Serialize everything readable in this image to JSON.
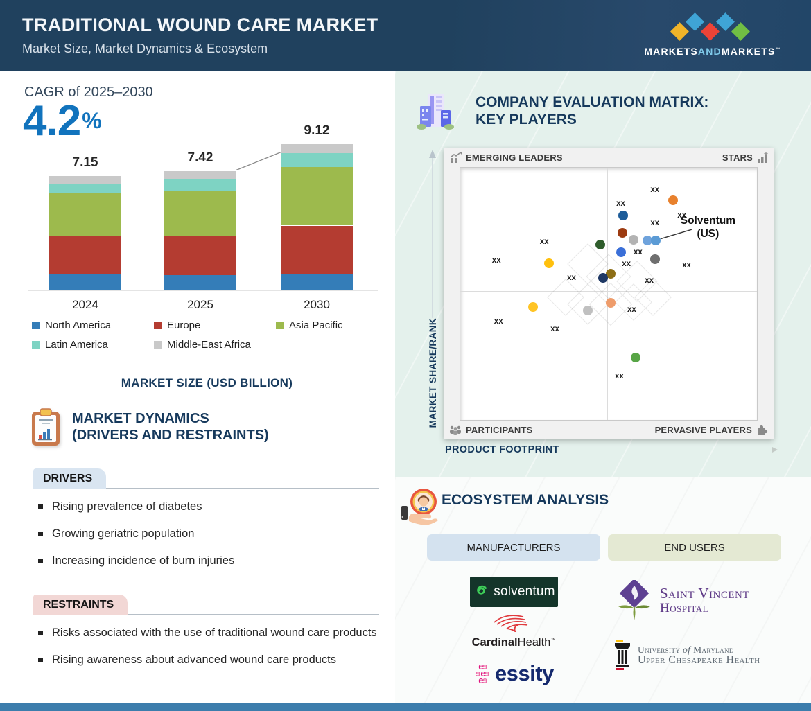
{
  "colors": {
    "header_bg": "#20415E",
    "accent_blue": "#1173BD",
    "navy_text": "#16395C",
    "panel_mint": "#E4F1EC",
    "footer_blue": "#3C7DAC",
    "driver_tab_bg": "#D9E5F1",
    "restraint_tab_bg": "#F2D7D5"
  },
  "header": {
    "title": "TRADITIONAL WOUND CARE MARKET",
    "subtitle": "Market Size, Market Dynamics & Ecosystem",
    "logo": {
      "part1": "MARKETS",
      "part2": "AND",
      "part3": "MARKETS",
      "tm": "™"
    }
  },
  "market_size": {
    "cagr_label": "CAGR of 2025–2030",
    "cagr_value": "4.2",
    "cagr_unit": "%",
    "caption": "MARKET SIZE (USD BILLION)"
  },
  "chart_data": [
    {
      "type": "bar",
      "stacked": true,
      "title": "MARKET SIZE (USD BILLION)",
      "cagr_label": "CAGR of 2025–2030",
      "cagr_value_pct": 4.2,
      "categories": [
        "2024",
        "2025",
        "2030"
      ],
      "totals": [
        7.15,
        7.42,
        9.12
      ],
      "series": [
        {
          "name": "North America",
          "color": "#347DB8",
          "values": [
            0.94,
            0.91,
            1.01
          ]
        },
        {
          "name": "Europe",
          "color": "#B43C31",
          "values": [
            2.43,
            2.49,
            3.01
          ]
        },
        {
          "name": "Asia Pacific",
          "color": "#9DBA4D",
          "values": [
            2.69,
            2.82,
            3.68
          ]
        },
        {
          "name": "Latin America",
          "color": "#7ED3C3",
          "values": [
            0.61,
            0.69,
            0.87
          ]
        },
        {
          "name": "Middle-East Africa",
          "color": "#C9C9C9",
          "values": [
            0.48,
            0.51,
            0.55
          ]
        }
      ],
      "ylabel": "Market size (USD Billion)",
      "legend_position": "below",
      "grid": false
    },
    {
      "type": "scatter",
      "title": "COMPANY EVALUATION MATRIX: KEY PLAYERS",
      "xlabel": "PRODUCT FOOTPRINT",
      "ylabel": "MARKET SHARE/RANK",
      "xlim": [
        0,
        100
      ],
      "ylim": [
        0,
        100
      ],
      "quadrant_divider_x": 49.5,
      "quadrant_divider_y": 49,
      "points": [
        {
          "x": 71.7,
          "y": 87.1,
          "color": "#E8812D",
          "name": "xx"
        },
        {
          "x": 54.8,
          "y": 81.1,
          "color": "#1D5C99",
          "name": "xx"
        },
        {
          "x": 54.6,
          "y": 74.2,
          "color": "#9C3A10",
          "name": "xx"
        },
        {
          "x": 58.3,
          "y": 71.5,
          "color": "#B3B3B3",
          "name": "xx"
        },
        {
          "x": 63.0,
          "y": 71.2,
          "color": "#6FA3DC",
          "name": "xx"
        },
        {
          "x": 66.0,
          "y": 71.2,
          "color": "#5B9BD5",
          "name": "Solventum (US)",
          "annotated": true
        },
        {
          "x": 47.1,
          "y": 69.6,
          "color": "#2F5D2C",
          "name": "xx"
        },
        {
          "x": 54.3,
          "y": 66.6,
          "color": "#3A6FD8",
          "name": "xx"
        },
        {
          "x": 65.6,
          "y": 63.8,
          "color": "#6F6F6F",
          "name": "xx"
        },
        {
          "x": 30.0,
          "y": 62.2,
          "color": "#FFC00D",
          "name": "xx"
        },
        {
          "x": 50.6,
          "y": 58.1,
          "color": "#8C6D15",
          "name": "xx"
        },
        {
          "x": 48.2,
          "y": 56.4,
          "color": "#1F3864",
          "name": "xx"
        },
        {
          "x": 50.6,
          "y": 46.3,
          "color": "#EE9C6B",
          "name": "xx"
        },
        {
          "x": 24.6,
          "y": 44.7,
          "color": "#FFC425",
          "name": "xx"
        },
        {
          "x": 43.1,
          "y": 43.3,
          "color": "#C0C0C0",
          "name": "xx"
        },
        {
          "x": 59.0,
          "y": 24.7,
          "color": "#58A546",
          "name": "xx"
        }
      ],
      "point_labels": [
        {
          "text": "xx",
          "x": 65.6,
          "y": 91.2
        },
        {
          "text": "xx",
          "x": 54.1,
          "y": 85.8
        },
        {
          "text": "xx",
          "x": 74.7,
          "y": 81.1
        },
        {
          "text": "xx",
          "x": 65.6,
          "y": 78.1
        },
        {
          "text": "xx",
          "x": 28.3,
          "y": 70.7
        },
        {
          "text": "xx",
          "x": 12.2,
          "y": 63.3
        },
        {
          "text": "xx",
          "x": 59.9,
          "y": 66.6
        },
        {
          "text": "xx",
          "x": 56.0,
          "y": 61.9
        },
        {
          "text": "xx",
          "x": 37.5,
          "y": 56.2
        },
        {
          "text": "xx",
          "x": 63.7,
          "y": 55.1
        },
        {
          "text": "xx",
          "x": 76.3,
          "y": 61.4
        },
        {
          "text": "xx",
          "x": 57.8,
          "y": 43.8
        },
        {
          "text": "xx",
          "x": 12.9,
          "y": 38.9
        },
        {
          "text": "xx",
          "x": 31.9,
          "y": 35.9
        },
        {
          "text": "xx",
          "x": 53.6,
          "y": 17.3
        }
      ]
    }
  ],
  "dynamics": {
    "title_line1": "MARKET DYNAMICS",
    "title_line2": "(DRIVERS AND RESTRAINTS)",
    "drivers": {
      "label": "DRIVERS",
      "items": [
        "Rising prevalence of diabetes",
        "Growing geriatric population",
        "Increasing incidence of burn injuries"
      ]
    },
    "restraints": {
      "label": "RESTRAINTS",
      "items": [
        "Risks associated with the use of traditional wound care products",
        "Rising awareness about advanced wound care products"
      ]
    }
  },
  "matrix": {
    "title_line1": "COMPANY EVALUATION MATRIX:",
    "title_line2": "KEY PLAYERS",
    "quadrants": {
      "top_left": "EMERGING LEADERS",
      "top_right": "STARS",
      "bottom_left": "PARTICIPANTS",
      "bottom_right": "PERVASIVE PLAYERS"
    },
    "x_axis": "PRODUCT FOOTPRINT",
    "y_axis": "MARKET SHARE/RANK",
    "annotation": {
      "line1": "Solventum",
      "line2": "(US)"
    }
  },
  "ecosystem": {
    "title": "ECOSYSTEM ANALYSIS",
    "columns": [
      {
        "label": "MANUFACTURERS"
      },
      {
        "label": "END USERS"
      }
    ],
    "manufacturers": {
      "solventum": "solventum",
      "cardinal_part1": "Cardinal",
      "cardinal_part2": "Health",
      "cardinal_tm": "™",
      "essity": "essity",
      "essity_mark_rows": [
        "ee",
        "eee",
        "ee"
      ]
    },
    "end_users": {
      "stv_line1": "Saint Vincent",
      "stv_line2": "Hospital",
      "umd_l1a": "University",
      "umd_l1b": "of",
      "umd_l1c": "Maryland",
      "umd_line2": "Upper Chesapeake Health"
    }
  }
}
